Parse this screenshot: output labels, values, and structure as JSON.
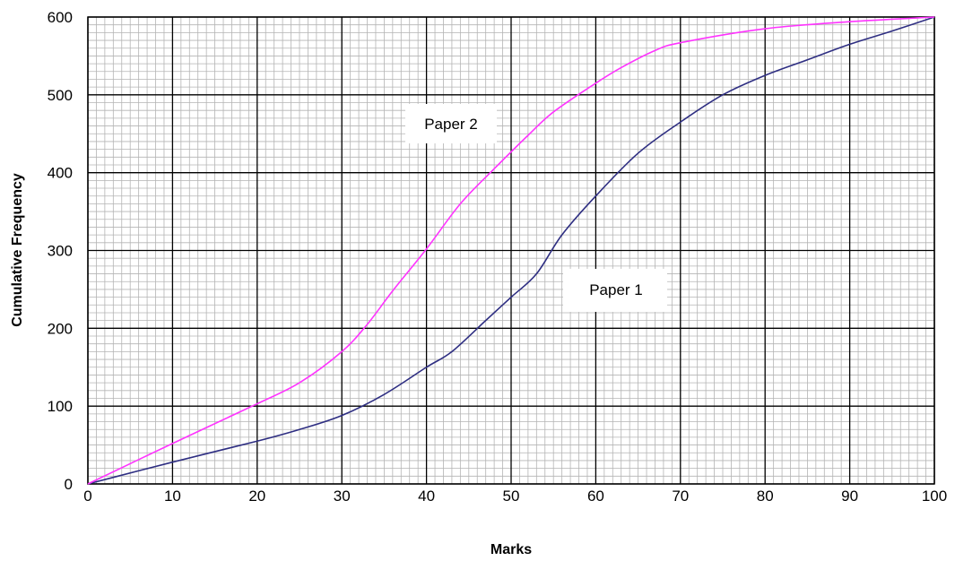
{
  "chart_data": {
    "type": "line",
    "title": "",
    "xlabel": "Marks",
    "ylabel": "Cumulative Frequency",
    "xlim": [
      0,
      100
    ],
    "ylim": [
      0,
      600
    ],
    "xticks": [
      0,
      10,
      20,
      30,
      40,
      50,
      60,
      70,
      80,
      90,
      100
    ],
    "yticks": [
      0,
      100,
      200,
      300,
      400,
      500,
      600
    ],
    "grid": {
      "major": true,
      "minor": true,
      "minor_divisions": 10
    },
    "legend": "none",
    "series": [
      {
        "name": "Paper 1",
        "color": "#2e2e82",
        "x": [
          0,
          10,
          20,
          25,
          30,
          35,
          40,
          43,
          47,
          50,
          53,
          56,
          60,
          65,
          70,
          75,
          80,
          85,
          90,
          95,
          100
        ],
        "y": [
          0,
          28,
          55,
          70,
          88,
          115,
          150,
          170,
          210,
          240,
          270,
          320,
          370,
          425,
          465,
          500,
          525,
          545,
          565,
          582,
          600
        ]
      },
      {
        "name": "Paper 2",
        "color": "#ff33ff",
        "x": [
          0,
          10,
          20,
          25,
          30,
          33,
          36,
          40,
          44,
          48,
          52,
          55,
          60,
          63,
          67,
          70,
          80,
          90,
          100
        ],
        "y": [
          0,
          52,
          103,
          130,
          170,
          205,
          248,
          302,
          360,
          405,
          448,
          478,
          515,
          535,
          557,
          567,
          585,
          594,
          600
        ]
      }
    ]
  }
}
